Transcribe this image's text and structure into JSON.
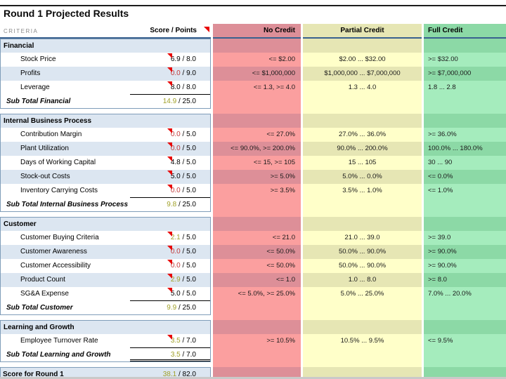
{
  "title": "Round 1 Projected Results",
  "header": {
    "criteria": "CRITERIA",
    "score": "Score / Points",
    "no_credit": "No Credit",
    "partial_credit": "Partial Credit",
    "full_credit": "Full Credit"
  },
  "sections": [
    {
      "name": "Financial",
      "rows": [
        {
          "label": "Stock Price",
          "score": "6.9",
          "max": "8.0",
          "tone": "black",
          "no": "<= $2.00",
          "partial": "$2.00 ... $32.00",
          "full": ">= $32.00"
        },
        {
          "label": "Profits",
          "score": "0.0",
          "max": "9.0",
          "tone": "red",
          "no": "<= $1,000,000",
          "partial": "$1,000,000 ... $7,000,000",
          "full": ">= $7,000,000"
        },
        {
          "label": "Leverage",
          "score": "8.0",
          "max": "8.0",
          "tone": "black",
          "no": "<= 1.3, >= 4.0",
          "partial": "1.3 ... 4.0",
          "full": "1.8 ... 2.8"
        }
      ],
      "subtotal": {
        "label": "Sub Total Financial",
        "score": "14.9",
        "max": "25.0",
        "tone": "olive"
      }
    },
    {
      "name": "Internal Business Process",
      "rows": [
        {
          "label": "Contribution Margin",
          "score": "0.0",
          "max": "5.0",
          "tone": "red",
          "no": "<= 27.0%",
          "partial": "27.0% ... 36.0%",
          "full": ">= 36.0%"
        },
        {
          "label": "Plant Utilization",
          "score": "0.0",
          "max": "5.0",
          "tone": "red",
          "no": "<= 90.0%, >= 200.0%",
          "partial": "90.0% ... 200.0%",
          "full": "100.0% ... 180.0%"
        },
        {
          "label": "Days of Working Capital",
          "score": "4.8",
          "max": "5.0",
          "tone": "black",
          "no": "<= 15, >= 105",
          "partial": "15 ... 105",
          "full": "30 ... 90"
        },
        {
          "label": "Stock-out Costs",
          "score": "5.0",
          "max": "5.0",
          "tone": "black",
          "no": ">= 5.0%",
          "partial": "5.0% ... 0.0%",
          "full": "<= 0.0%"
        },
        {
          "label": "Inventory Carrying Costs",
          "score": "0.0",
          "max": "5.0",
          "tone": "red",
          "no": ">= 3.5%",
          "partial": "3.5% ... 1.0%",
          "full": "<= 1.0%"
        }
      ],
      "subtotal": {
        "label": "Sub Total Internal Business Process",
        "score": "9.8",
        "max": "25.0",
        "tone": "olive"
      }
    },
    {
      "name": "Customer",
      "rows": [
        {
          "label": "Customer Buying Criteria",
          "score": "2.1",
          "max": "5.0",
          "tone": "olive",
          "no": "<= 21.0",
          "partial": "21.0 ... 39.0",
          "full": ">= 39.0"
        },
        {
          "label": "Customer Awareness",
          "score": "0.0",
          "max": "5.0",
          "tone": "red",
          "no": "<= 50.0%",
          "partial": "50.0% ... 90.0%",
          "full": ">= 90.0%"
        },
        {
          "label": "Customer Accessibility",
          "score": "0.0",
          "max": "5.0",
          "tone": "red",
          "no": "<= 50.0%",
          "partial": "50.0% ... 90.0%",
          "full": ">= 90.0%"
        },
        {
          "label": "Product Count",
          "score": "2.9",
          "max": "5.0",
          "tone": "olive",
          "no": "<= 1.0",
          "partial": "1.0 ... 8.0",
          "full": ">= 8.0"
        },
        {
          "label": "SG&A Expense",
          "score": "5.0",
          "max": "5.0",
          "tone": "black",
          "no": "<= 5.0%, >= 25.0%",
          "partial": "5.0% ... 25.0%",
          "full": "7.0% ... 20.0%"
        }
      ],
      "subtotal": {
        "label": "Sub Total Customer",
        "score": "9.9",
        "max": "25.0",
        "tone": "olive"
      }
    },
    {
      "name": "Learning and Growth",
      "rows": [
        {
          "label": "Employee Turnover Rate",
          "score": "3.5",
          "max": "7.0",
          "tone": "olive",
          "no": ">= 10.5%",
          "partial": "10.5% ... 9.5%",
          "full": "<= 9.5%"
        }
      ],
      "subtotal": {
        "label": "Sub Total Learning and Growth",
        "score": "3.5",
        "max": "7.0",
        "tone": "olive",
        "double_rule": true
      }
    }
  ],
  "total": {
    "label": "Score for Round 1",
    "score": "38.1",
    "max": "82.0",
    "tone": "olive"
  },
  "colors": {
    "row_blue": "#dce6f1",
    "no_credit_light": "#fb9f9f",
    "no_credit_dark": "#dd8f98",
    "partial_light": "#ffffc9",
    "partial_dark": "#e6e6b4",
    "full_light": "#a5ecbd",
    "full_dark": "#8cd9a6",
    "section_border": "#7f9db9",
    "header_rule": "#39618f",
    "score_red": "#c03a3a",
    "score_olive": "#a0a028",
    "marker_red": "#e80000"
  }
}
